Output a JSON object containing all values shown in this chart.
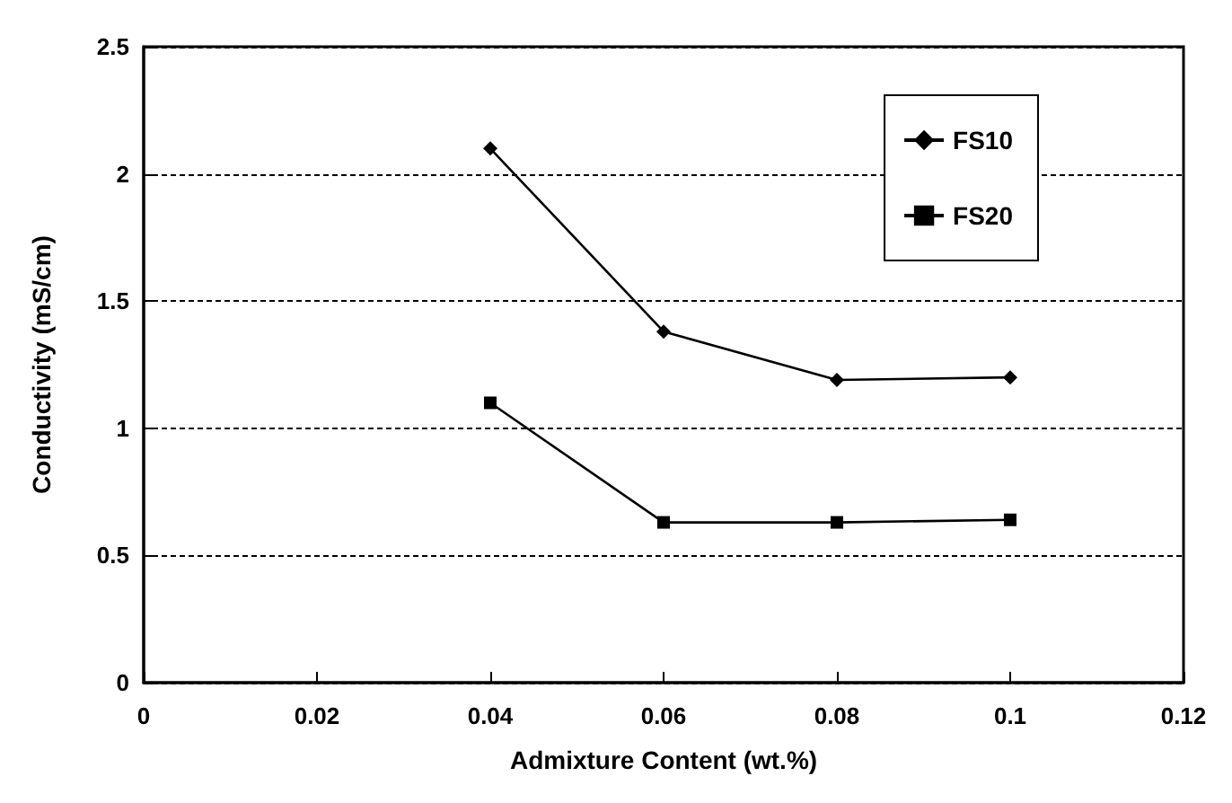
{
  "chart_data": {
    "type": "line",
    "xlabel": "Admixture Content (wt.%)",
    "ylabel": "Conductivity (mS/cm)",
    "x": [
      0.04,
      0.06,
      0.08,
      0.1
    ],
    "series": [
      {
        "name": "FS10",
        "color": "#000000",
        "marker": "diamond",
        "values": [
          2.1,
          1.38,
          1.19,
          1.2
        ]
      },
      {
        "name": "FS20",
        "color": "#000000",
        "marker": "square",
        "values": [
          1.1,
          0.63,
          0.63,
          0.64
        ]
      }
    ],
    "xlim": [
      0,
      0.12
    ],
    "xticks": [
      0,
      0.02,
      0.04,
      0.06,
      0.08,
      0.1,
      0.12
    ],
    "ylim": [
      0,
      2.5
    ],
    "yticks": [
      0,
      0.5,
      1,
      1.5,
      2,
      2.5
    ],
    "grid": "y",
    "legend": "top right",
    "line_style": "solid"
  }
}
